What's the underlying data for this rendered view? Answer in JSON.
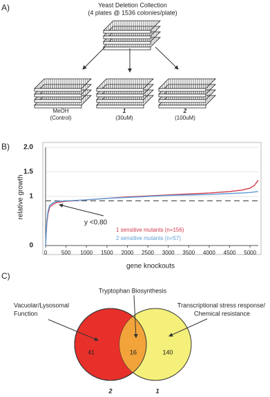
{
  "panel_a": {
    "label": "A)",
    "title": "Yeast Deletion Collection",
    "subtitle": "(4 plates @ 1536 colonies/plate)",
    "conditions": [
      {
        "name": "MeOH",
        "dose": "(Control)"
      },
      {
        "name": "1",
        "dose": "(30uM)"
      },
      {
        "name": "2",
        "dose": "(100uM)"
      }
    ]
  },
  "chart_data": {
    "type": "line",
    "panel_label": "B)",
    "x_label": "gene knockouts",
    "y_label": "relative growth",
    "x": [
      0,
      30,
      60,
      100,
      200,
      300,
      500,
      1000,
      1500,
      2000,
      2500,
      3000,
      3500,
      4000,
      4500,
      4800,
      5000,
      5100,
      5200
    ],
    "series": [
      {
        "name": "1 sensitive mutants (n=156)",
        "color": "#d2394b",
        "values": [
          0,
          0.45,
          0.65,
          0.78,
          0.85,
          0.88,
          0.9,
          0.93,
          0.96,
          0.99,
          1.01,
          1.03,
          1.05,
          1.07,
          1.1,
          1.13,
          1.17,
          1.22,
          1.33
        ]
      },
      {
        "name": "2 sensitive mutants (n=57)",
        "color": "#5b9bd5",
        "values": [
          0,
          0.5,
          0.7,
          0.82,
          0.88,
          0.9,
          0.91,
          0.93,
          0.96,
          0.98,
          1.0,
          1.02,
          1.03,
          1.04,
          1.06,
          1.07,
          1.08,
          1.09,
          1.1
        ]
      }
    ],
    "reference_line": 0.91,
    "annotation": "y <0.80",
    "xlim": [
      0,
      5200
    ],
    "xticks": [
      0,
      500,
      1000,
      1500,
      2000,
      2500,
      3000,
      3500,
      4000,
      4500,
      5000
    ],
    "ylim": [
      0,
      2
    ],
    "yticks": [
      0,
      1,
      1.5,
      {
        "value": 2,
        "label": "2.0"
      }
    ],
    "grid": true
  },
  "panel_c": {
    "label": "C)",
    "center_label": "Tryptophan Biosynthesis",
    "left_label": [
      "Vacuolar/Lysosomal",
      "Function"
    ],
    "right_label": [
      "Transcriptional stress response/",
      "Chemical resistance"
    ],
    "left_only": 41,
    "overlap": 16,
    "right_only": 140,
    "left_set": "2",
    "right_set": "1"
  }
}
